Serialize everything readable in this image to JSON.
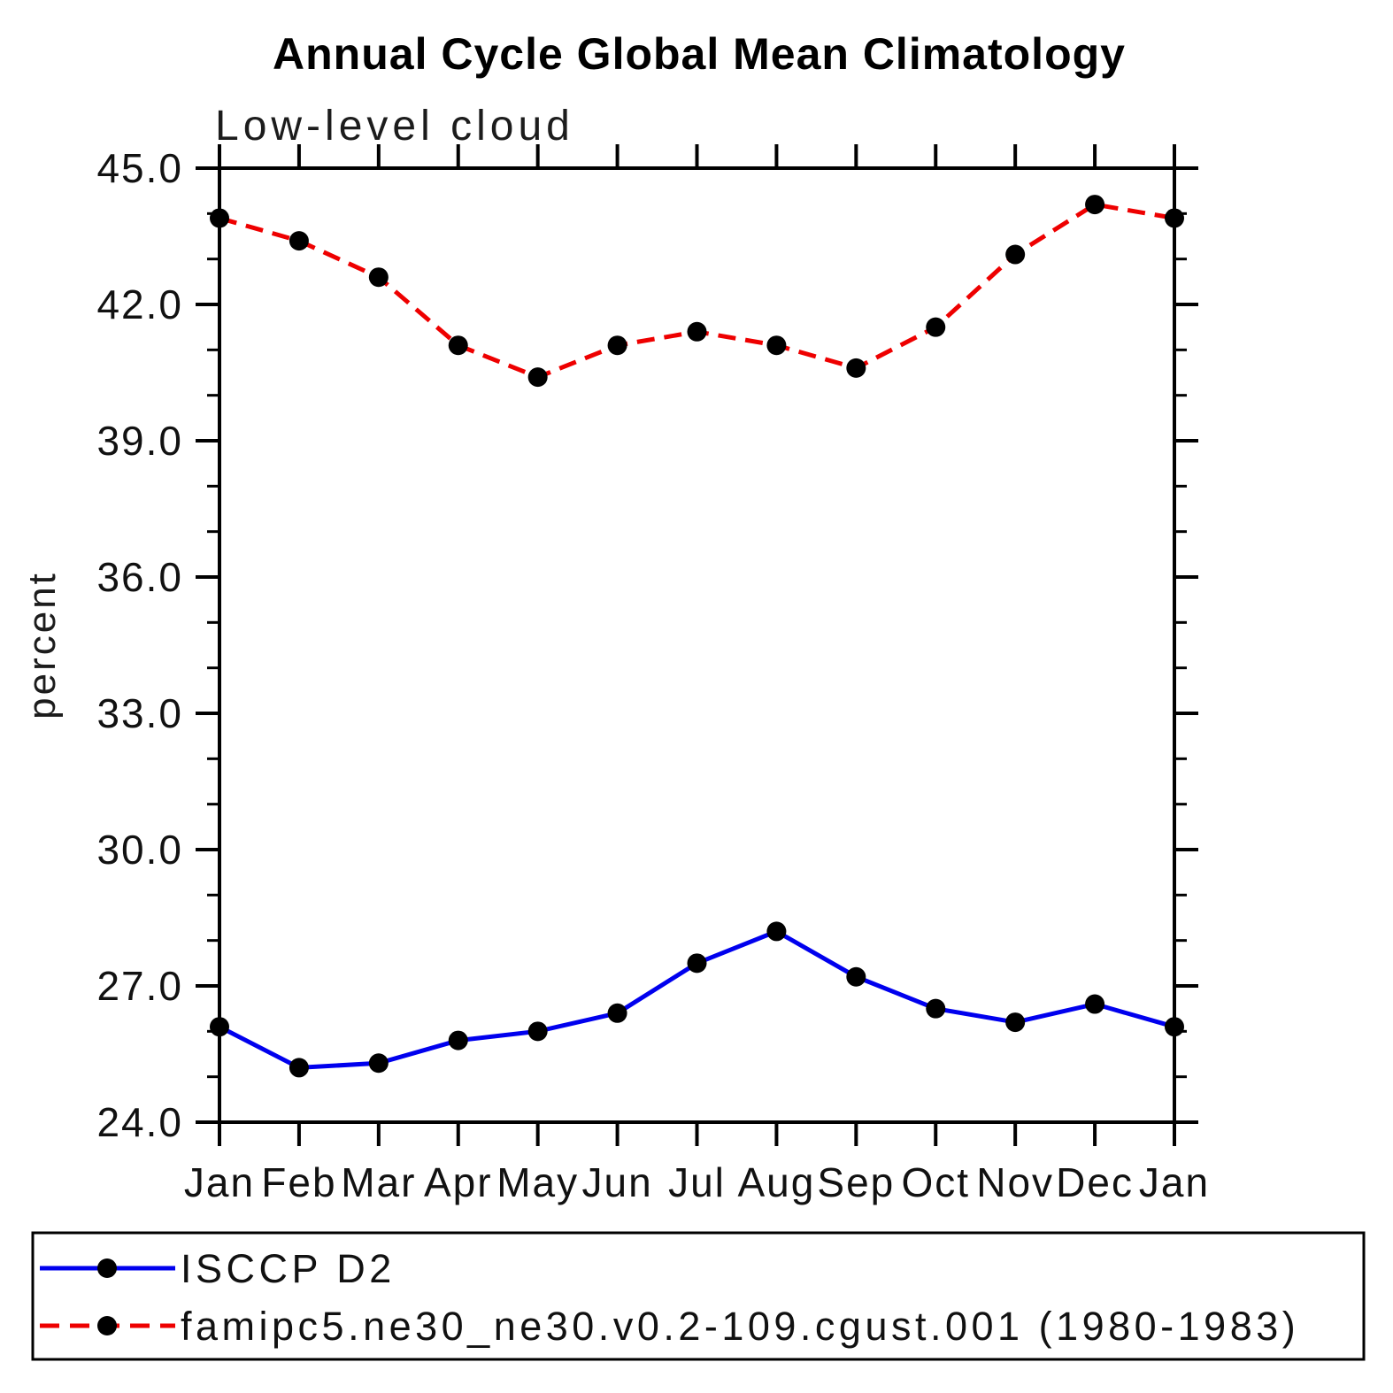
{
  "page": {
    "background": "#ffffff"
  },
  "chart_data": {
    "type": "line",
    "title": "Annual Cycle Global Mean Climatology",
    "subtitle": "Low-level cloud",
    "ylabel": "percent",
    "xlabel": "",
    "categories": [
      "Jan",
      "Feb",
      "Mar",
      "Apr",
      "May",
      "Jun",
      "Jul",
      "Aug",
      "Sep",
      "Oct",
      "Nov",
      "Dec",
      "Jan"
    ],
    "series": [
      {
        "name": "ISCCP D2",
        "color": "#0000ee",
        "line_style": "solid",
        "marker": "circle",
        "marker_color": "#000000",
        "values": [
          26.1,
          25.2,
          25.3,
          25.8,
          26.0,
          26.4,
          27.5,
          28.2,
          27.2,
          26.5,
          26.2,
          26.6,
          26.1
        ]
      },
      {
        "name": "famipc5.ne30_ne30.v0.2-109.cgust.001 (1980-1983)",
        "color": "#ee0000",
        "line_style": "dashed",
        "marker": "circle",
        "marker_color": "#000000",
        "values": [
          43.9,
          43.4,
          42.6,
          41.1,
          40.4,
          41.1,
          41.4,
          41.1,
          40.6,
          41.5,
          43.1,
          44.2,
          43.9
        ]
      }
    ],
    "ylim": [
      24.0,
      45.0
    ],
    "yticks_major": [
      24,
      27,
      30,
      33,
      36,
      39,
      42,
      45
    ],
    "ytick_labels": [
      "24.0",
      "27.0",
      "30.0",
      "33.0",
      "36.0",
      "39.0",
      "42.0",
      "45.0"
    ],
    "yticks_minor_step": 1.0,
    "grid": false,
    "legend_position": "bottom",
    "axis_color": "#000000"
  }
}
